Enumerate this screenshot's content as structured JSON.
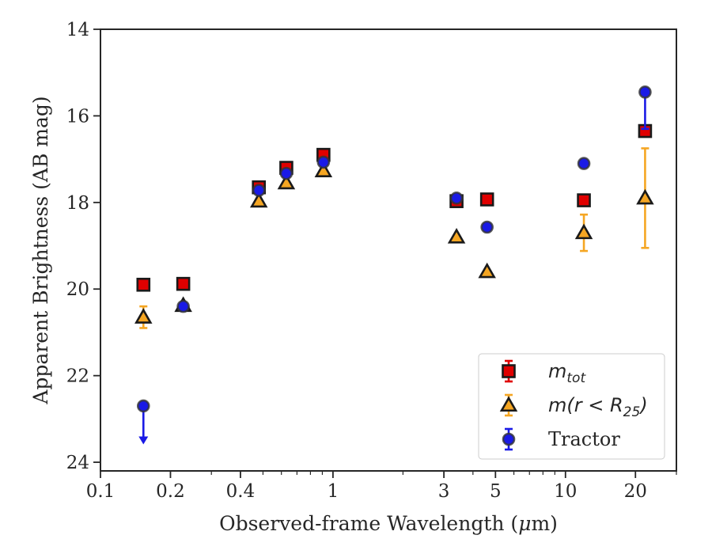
{
  "chart_data": {
    "type": "scatter",
    "xscale": "log",
    "xlim": [
      0.1,
      30
    ],
    "ylim": [
      24.2,
      14
    ],
    "y_inverted": true,
    "xlabel_prefix": "Observed-frame Wavelength (",
    "xlabel_mu": "μ",
    "xlabel_suffix": "m)",
    "ylabel": "Apparent Brightness (AB mag)",
    "xticks": [
      {
        "value": 0.1,
        "label": "0.1"
      },
      {
        "value": 0.2,
        "label": "0.2"
      },
      {
        "value": 0.4,
        "label": "0.4"
      },
      {
        "value": 1,
        "label": "1"
      },
      {
        "value": 3,
        "label": "3"
      },
      {
        "value": 5,
        "label": "5"
      },
      {
        "value": 10,
        "label": "10"
      },
      {
        "value": 20,
        "label": "20"
      }
    ],
    "yticks": [
      {
        "value": 14,
        "label": "14"
      },
      {
        "value": 16,
        "label": "16"
      },
      {
        "value": 18,
        "label": "18"
      },
      {
        "value": 20,
        "label": "20"
      },
      {
        "value": 22,
        "label": "22"
      },
      {
        "value": 24,
        "label": "24"
      }
    ],
    "legend_position": "lower-right",
    "grid": false,
    "series": [
      {
        "key": "mtot",
        "legend_main": "m",
        "legend_sub": "tot",
        "marker": "square",
        "color": "#e00000",
        "errcolor": "#e00000",
        "points": [
          {
            "x": 0.153,
            "y": 19.9,
            "err": 0
          },
          {
            "x": 0.227,
            "y": 19.88,
            "err": 0
          },
          {
            "x": 0.48,
            "y": 17.65,
            "err": 0
          },
          {
            "x": 0.63,
            "y": 17.2,
            "err": 0
          },
          {
            "x": 0.91,
            "y": 16.9,
            "err": 0
          },
          {
            "x": 3.4,
            "y": 17.97,
            "err": 0
          },
          {
            "x": 4.6,
            "y": 17.93,
            "err": 0
          },
          {
            "x": 12.0,
            "y": 17.95,
            "err": 0
          },
          {
            "x": 22.0,
            "y": 16.35,
            "err": 0
          }
        ]
      },
      {
        "key": "mr25",
        "legend_main": "m",
        "legend_sub": "25",
        "legend_inner": "(r < R",
        "legend_close": ")",
        "marker": "triangle",
        "color": "#f5a623",
        "errcolor": "#f5a623",
        "points": [
          {
            "x": 0.153,
            "y": 20.65,
            "err": 0.25
          },
          {
            "x": 0.227,
            "y": 20.38,
            "err": 0
          },
          {
            "x": 0.48,
            "y": 17.97,
            "err": 0
          },
          {
            "x": 0.63,
            "y": 17.55,
            "err": 0
          },
          {
            "x": 0.91,
            "y": 17.27,
            "err": 0
          },
          {
            "x": 3.4,
            "y": 18.8,
            "err": 0
          },
          {
            "x": 4.6,
            "y": 19.6,
            "err": 0
          },
          {
            "x": 12.0,
            "y": 18.7,
            "err": 0.42
          },
          {
            "x": 22.0,
            "y": 17.9,
            "err": 1.15
          }
        ]
      },
      {
        "key": "tractor",
        "legend_label": "Tractor",
        "marker": "circle",
        "color": "#1a1ae6",
        "errcolor": "#1a1ae6",
        "points": [
          {
            "x": 0.153,
            "y": 22.7,
            "err": 0,
            "upper_limit": true,
            "limit_to": 23.55
          },
          {
            "x": 0.227,
            "y": 20.4,
            "err": 0
          },
          {
            "x": 0.48,
            "y": 17.72,
            "err": 0
          },
          {
            "x": 0.63,
            "y": 17.33,
            "err": 0
          },
          {
            "x": 0.91,
            "y": 17.07,
            "err": 0
          },
          {
            "x": 3.4,
            "y": 17.9,
            "err": 0
          },
          {
            "x": 4.6,
            "y": 18.57,
            "err": 0
          },
          {
            "x": 12.0,
            "y": 17.1,
            "err": 0
          },
          {
            "x": 22.0,
            "y": 15.45,
            "err": 0,
            "bar_to": 16.3
          }
        ]
      }
    ]
  }
}
